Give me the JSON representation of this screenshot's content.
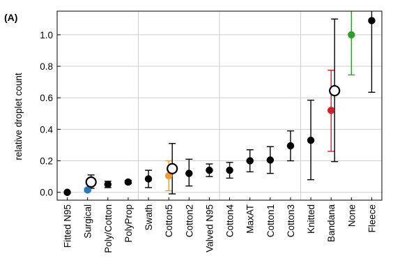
{
  "chart_data": {
    "type": "scatter",
    "panel_label": "(A)",
    "title": "",
    "xlabel": "",
    "ylabel": "relative droplet count",
    "ylim": [
      -0.05,
      1.15
    ],
    "yticks": [
      "0.0",
      "0.2",
      "0.4",
      "0.6",
      "0.8",
      "1.0"
    ],
    "yticks_values": [
      0.0,
      0.2,
      0.4,
      0.6,
      0.8,
      1.0
    ],
    "grid": true,
    "legend": "none",
    "categories": [
      "Fitted N95",
      "Surgical",
      "Poly/Cotton",
      "PolyProp",
      "Swath",
      "Cotton5",
      "Cotton2",
      "Valved N95",
      "Cotton4",
      "MaxAT",
      "Cotton1",
      "Cotton3",
      "Knitted",
      "Bandana",
      "None",
      "Fleece"
    ],
    "series": [
      {
        "marker": "filled-circle",
        "points": [
          {
            "category": "Fitted N95",
            "y": 0.0,
            "err_low": 0.0,
            "err_high": 0.0,
            "color": "#000000"
          },
          {
            "category": "Surgical",
            "y": 0.015,
            "err_low": 0.005,
            "err_high": 0.025,
            "color": "#2a78bd"
          },
          {
            "category": "Poly/Cotton",
            "y": 0.05,
            "err_low": 0.03,
            "err_high": 0.07,
            "color": "#000000"
          },
          {
            "category": "PolyProp",
            "y": 0.065,
            "err_low": 0.055,
            "err_high": 0.075,
            "color": "#000000"
          },
          {
            "category": "Swath",
            "y": 0.085,
            "err_low": 0.03,
            "err_high": 0.14,
            "color": "#000000"
          },
          {
            "category": "Cotton5",
            "y": 0.105,
            "err_low": 0.01,
            "err_high": 0.2,
            "color": "#f29a2e"
          },
          {
            "category": "Cotton2",
            "y": 0.12,
            "err_low": 0.04,
            "err_high": 0.21,
            "color": "#000000"
          },
          {
            "category": "Valved N95",
            "y": 0.14,
            "err_low": 0.1,
            "err_high": 0.18,
            "color": "#000000"
          },
          {
            "category": "Cotton4",
            "y": 0.14,
            "err_low": 0.09,
            "err_high": 0.19,
            "color": "#000000"
          },
          {
            "category": "MaxAT",
            "y": 0.2,
            "err_low": 0.13,
            "err_high": 0.27,
            "color": "#000000"
          },
          {
            "category": "Cotton1",
            "y": 0.205,
            "err_low": 0.12,
            "err_high": 0.29,
            "color": "#000000"
          },
          {
            "category": "Cotton3",
            "y": 0.295,
            "err_low": 0.2,
            "err_high": 0.39,
            "color": "#000000"
          },
          {
            "category": "Knitted",
            "y": 0.33,
            "err_low": 0.08,
            "err_high": 0.585,
            "color": "#000000"
          },
          {
            "category": "Bandana",
            "y": 0.52,
            "err_low": 0.26,
            "err_high": 0.775,
            "color": "#d0202e"
          },
          {
            "category": "None",
            "y": 1.0,
            "err_low": 0.745,
            "err_high": 1.15,
            "color": "#2aa02a"
          },
          {
            "category": "Fleece",
            "y": 1.09,
            "err_low": 0.635,
            "err_high": 1.15,
            "color": "#000000"
          }
        ]
      },
      {
        "marker": "open-circle",
        "points": [
          {
            "category": "Surgical",
            "y": 0.065,
            "err_low": 0.025,
            "err_high": 0.11,
            "color": "#000000"
          },
          {
            "category": "Cotton5",
            "y": 0.15,
            "err_low": -0.01,
            "err_high": 0.31,
            "color": "#000000"
          },
          {
            "category": "Bandana",
            "y": 0.645,
            "err_low": 0.195,
            "err_high": 1.1,
            "color": "#000000"
          }
        ]
      }
    ]
  }
}
